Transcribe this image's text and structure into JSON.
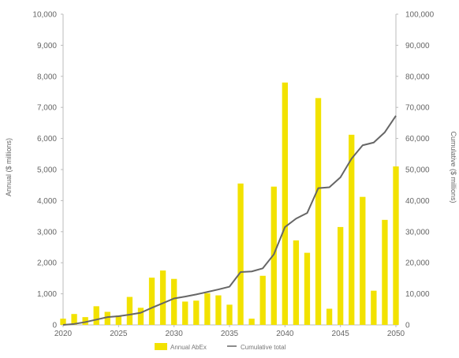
{
  "chart_data": {
    "type": "bar",
    "x": [
      2020,
      2021,
      2022,
      2023,
      2024,
      2025,
      2026,
      2027,
      2028,
      2029,
      2030,
      2031,
      2032,
      2033,
      2034,
      2035,
      2036,
      2037,
      2038,
      2039,
      2040,
      2041,
      2042,
      2043,
      2044,
      2045,
      2046,
      2047,
      2048,
      2049,
      2050
    ],
    "x_ticks": [
      2020,
      2025,
      2030,
      2035,
      2040,
      2045,
      2050
    ],
    "series": [
      {
        "name": "Annual AbEx",
        "kind": "bar",
        "axis": "left",
        "color": "#f2e200",
        "values": [
          200,
          350,
          250,
          600,
          420,
          300,
          900,
          550,
          1520,
          1750,
          1480,
          750,
          780,
          1020,
          950,
          650,
          4550,
          200,
          1580,
          4450,
          7800,
          2720,
          2320,
          7300,
          520,
          3150,
          6120,
          4120,
          1100,
          3380,
          5100
        ]
      },
      {
        "name": "Cumulative total",
        "kind": "line",
        "axis": "right",
        "color": "#666666",
        "values": [
          0,
          300,
          900,
          1700,
          2500,
          2800,
          3300,
          3900,
          5500,
          7000,
          8500,
          9100,
          9800,
          10600,
          11400,
          12300,
          17000,
          17200,
          18200,
          22700,
          31500,
          34200,
          36000,
          44000,
          44300,
          47500,
          53500,
          57800,
          58700,
          62000,
          67300
        ]
      }
    ],
    "ylabel": "Annual ($ millions)",
    "y2label": "Cumulative ($ millions)",
    "ylim": [
      0,
      10000
    ],
    "y2lim": [
      0,
      100000
    ],
    "y_ticks": [
      "0",
      "1,000",
      "2,000",
      "3,000",
      "4,000",
      "5,000",
      "6,000",
      "7,000",
      "8,000",
      "9,000",
      "10,000"
    ],
    "y2_ticks": [
      "0",
      "10,000",
      "20,000",
      "30,000",
      "40,000",
      "50,000",
      "60,000",
      "70,000",
      "80,000",
      "90,000",
      "100,000"
    ],
    "grid": false,
    "legend_position": "bottom"
  }
}
